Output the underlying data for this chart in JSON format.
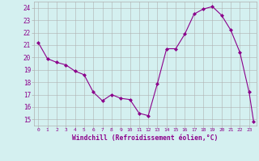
{
  "x": [
    0,
    1,
    2,
    3,
    4,
    5,
    6,
    7,
    8,
    9,
    10,
    11,
    12,
    13,
    14,
    15,
    16,
    17,
    18,
    19,
    20,
    21,
    22,
    23,
    23.5
  ],
  "y": [
    21.2,
    19.9,
    19.6,
    19.4,
    18.9,
    18.6,
    17.2,
    16.5,
    17.0,
    16.7,
    16.6,
    15.5,
    15.3,
    17.9,
    20.7,
    20.7,
    21.9,
    23.5,
    23.9,
    24.1,
    23.4,
    22.2,
    20.4,
    17.2,
    14.8
  ],
  "line_color": "#8B008B",
  "marker_color": "#8B008B",
  "bg_color": "#d4f0f0",
  "grid_color": "#b0b0b0",
  "xlabel": "Windchill (Refroidissement éolien,°C)",
  "ylabel_ticks": [
    15,
    16,
    17,
    18,
    19,
    20,
    21,
    22,
    23,
    24
  ],
  "xlim": [
    -0.5,
    23.8
  ],
  "ylim": [
    14.5,
    24.5
  ],
  "xticks": [
    0,
    1,
    2,
    3,
    4,
    5,
    6,
    7,
    8,
    9,
    10,
    11,
    12,
    13,
    14,
    15,
    16,
    17,
    18,
    19,
    20,
    21,
    22,
    23
  ]
}
